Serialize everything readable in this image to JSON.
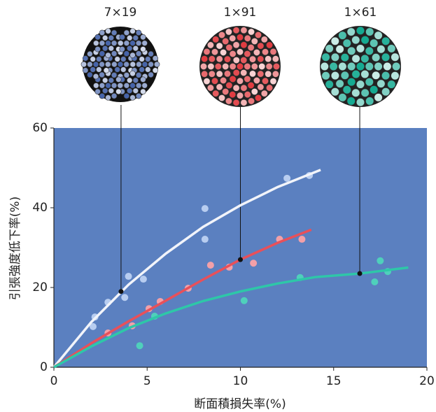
{
  "chart_data": {
    "type": "scatter",
    "x_label": "断面積損失率(%)",
    "y_label": "引張強度低下率(%)",
    "xlim": [
      0,
      20
    ],
    "ylim": [
      0,
      60
    ],
    "xticks": [
      0,
      5,
      10,
      15,
      20
    ],
    "yticks": [
      0,
      20,
      40,
      60
    ],
    "background": "#5b80c0",
    "series": [
      {
        "name": "7×19",
        "color": "#f2f4fa",
        "point_color": "#b8cdf0",
        "x": [
          2.2,
          2.1,
          2.9,
          4.0,
          3.8,
          4.8,
          8.1,
          8.1,
          12.5,
          13.7
        ],
        "values": [
          12.6,
          10.2,
          16.3,
          22.8,
          17.5,
          22.1,
          39.8,
          32.1,
          47.4,
          48.1
        ],
        "curve_x": [
          0,
          2,
          4,
          6,
          8,
          10,
          12,
          14.3
        ],
        "curve_y": [
          0,
          11.3,
          20.7,
          28.5,
          35.2,
          40.6,
          45.2,
          49.5
        ],
        "marker_x": 3.6,
        "marker_y": 19
      },
      {
        "name": "1×91",
        "color": "#e8505a",
        "point_color": "#f3a0a8",
        "x": [
          2.9,
          4.2,
          5.1,
          5.7,
          7.2,
          8.4,
          9.4,
          10.7,
          12.1,
          13.3
        ],
        "values": [
          8.6,
          10.4,
          14.7,
          16.5,
          19.8,
          25.6,
          25.1,
          26.1,
          32.1,
          32.1
        ],
        "curve_x": [
          0,
          2,
          4,
          6,
          8,
          10,
          12,
          13.8
        ],
        "curve_y": [
          0,
          6,
          11.5,
          16.7,
          22,
          27,
          31.2,
          34.5
        ],
        "marker_x": 10,
        "marker_y": 27
      },
      {
        "name": "1×61",
        "color": "#2ec7a8",
        "point_color": "#4fd0bb",
        "x": [
          4.6,
          5.4,
          10.2,
          13.2,
          17.2,
          17.5,
          17.9
        ],
        "values": [
          5.4,
          12.8,
          16.7,
          22.5,
          21.4,
          26.7,
          24.0
        ],
        "curve_x": [
          0,
          2,
          4,
          6,
          8,
          10,
          12,
          14,
          16.4,
          19
        ],
        "curve_y": [
          0,
          5.2,
          9.8,
          13.5,
          16.6,
          19,
          21,
          22.6,
          23.5,
          25
        ],
        "marker_x": 16.4,
        "marker_y": 23.5
      }
    ]
  }
}
